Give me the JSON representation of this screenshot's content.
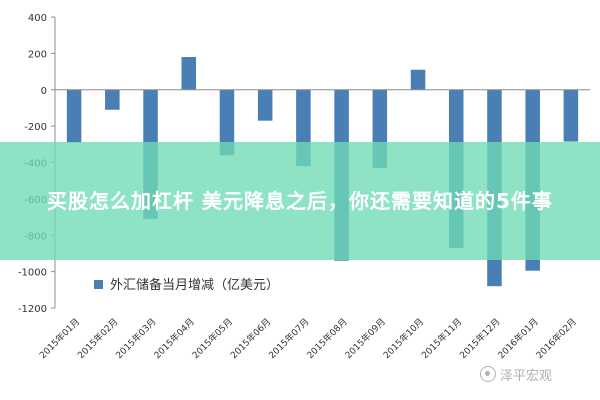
{
  "banner": {
    "title": "买股怎么加杠杆 美元降息之后，你还需要知道的5件事"
  },
  "watermark": {
    "text": "泽平宏观"
  },
  "chart_data": {
    "type": "bar",
    "title": "",
    "xlabel": "",
    "ylabel": "",
    "ylim": [
      -1200,
      400
    ],
    "yticks": [
      400,
      200,
      0,
      -200,
      -400,
      -600,
      -800,
      -1000,
      -1200
    ],
    "grid": false,
    "legend_position": "bottom-left-inside",
    "bar_color": "#4A7FB5",
    "categories": [
      "2015年01月",
      "2015年02月",
      "2015年03月",
      "2015年04月",
      "2015年05月",
      "2015年06月",
      "2015年07月",
      "2015年08月",
      "2015年09月",
      "2015年10月",
      "2015年11月",
      "2015年12月",
      "2016年01月",
      "2016年02月"
    ],
    "series": [
      {
        "name": "外汇储备当月增减（亿美元）",
        "values": [
          -290,
          -110,
          -710,
          180,
          -360,
          -170,
          -420,
          -940,
          -430,
          110,
          -870,
          -1080,
          -995,
          -285
        ]
      }
    ]
  }
}
